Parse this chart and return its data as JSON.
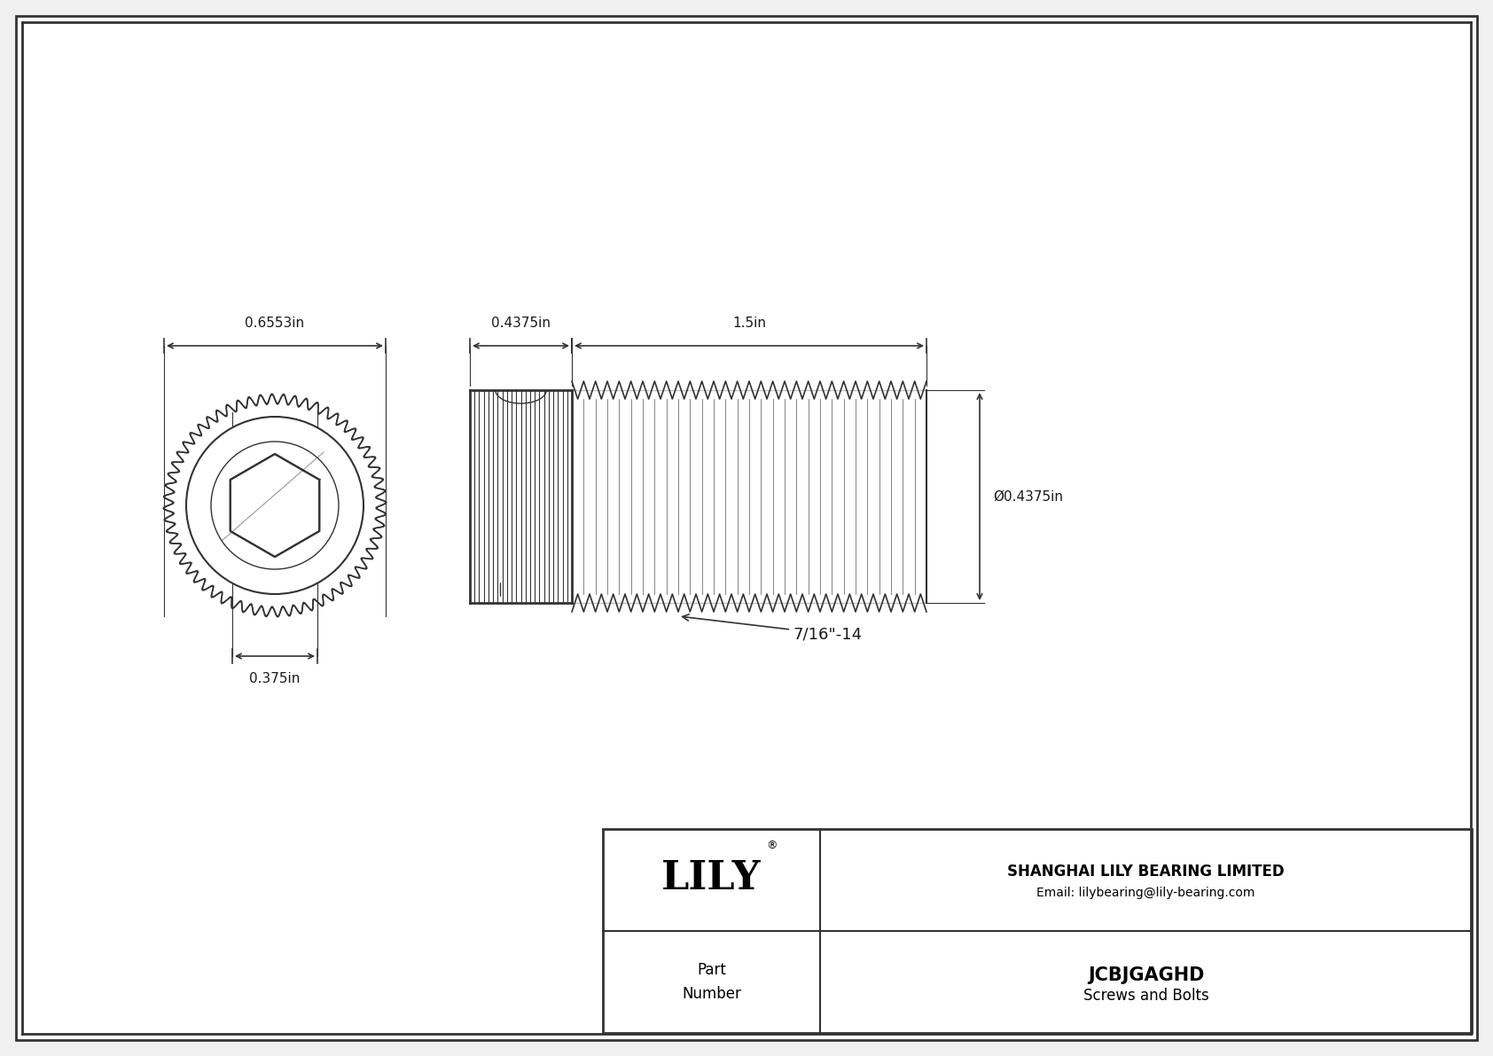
{
  "bg_color": "#f0f0f0",
  "inner_bg": "#ffffff",
  "border_color": "#333333",
  "line_color": "#333333",
  "dim_color": "#333333",
  "text_color": "#1a1a1a",
  "title": "JCBJGAGHD",
  "subtitle": "Screws and Bolts",
  "company": "SHANGHAI LILY BEARING LIMITED",
  "email": "Email: lilybearing@lily-bearing.com",
  "part_label": "Part\nNumber",
  "brand": "LILY",
  "dim_head_width": "0.6553in",
  "dim_hex_width": "0.375in",
  "dim_head_length": "0.4375in",
  "dim_body_length": "1.5in",
  "dim_body_dia": "Ø0.4375in",
  "dim_thread": "7/16\"-14",
  "fig_width": 16.84,
  "fig_height": 11.91
}
